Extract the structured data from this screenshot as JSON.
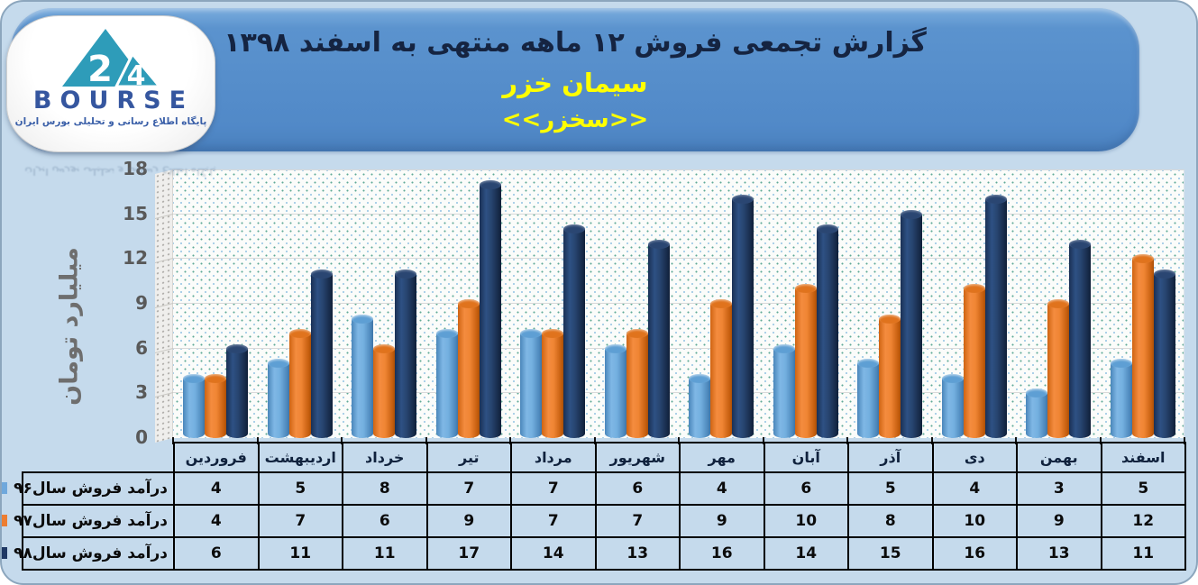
{
  "page": {
    "background": "#c5daec",
    "border_color": "#8ca6bd"
  },
  "banner": {
    "title": "گزارش تجمعی فروش  ۱۲ ماهه منتهی به اسفند ۱۳۹۸",
    "subtitle": "سیمان خزر",
    "ticker": "<<سخزر>>",
    "background": "#5189c8",
    "title_color": "#152441",
    "highlight_color": "#ffff00"
  },
  "logo": {
    "brand": "BOURSE",
    "number": "24",
    "tagline": "پایگاه اطلاع رسانی و تحلیلی بورس ایران",
    "triangle_color": "#2e9cb9",
    "text_color": "#35569f"
  },
  "chart_data": {
    "type": "bar",
    "subtype": "3d-cylinder",
    "title": "",
    "xlabel": "",
    "ylabel": "میلیارد تومان",
    "ylim": [
      0,
      18
    ],
    "yticks": [
      0,
      3,
      6,
      9,
      12,
      15,
      18
    ],
    "grid": true,
    "legend_position": "table-rows-left",
    "categories": [
      "فروردین",
      "اردیبهشت",
      "خرداد",
      "تیر",
      "مرداد",
      "شهریور",
      "مهر",
      "آبان",
      "آذر",
      "دی",
      "بهمن",
      "اسفند"
    ],
    "series": [
      {
        "name": "درآمد فروش سال۹۶",
        "color": "#6fa8dc",
        "values": [
          4,
          5,
          8,
          7,
          7,
          6,
          4,
          6,
          5,
          4,
          3,
          5
        ]
      },
      {
        "name": "درآمد فروش سال۹۷",
        "color": "#ed7d31",
        "values": [
          4,
          7,
          6,
          9,
          7,
          7,
          9,
          10,
          8,
          10,
          9,
          12
        ]
      },
      {
        "name": "درآمد فروش سال۹۸",
        "color": "#1f3864",
        "values": [
          6,
          11,
          11,
          17,
          14,
          13,
          16,
          14,
          15,
          16,
          13,
          11
        ]
      }
    ]
  }
}
